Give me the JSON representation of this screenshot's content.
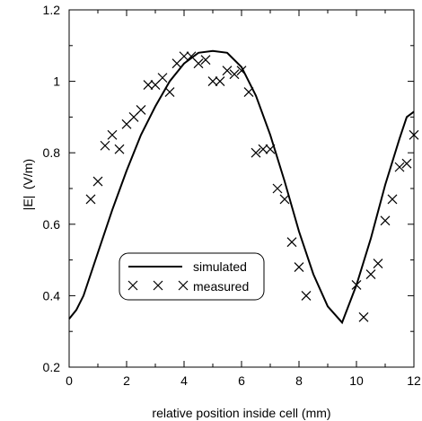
{
  "chart_data": {
    "type": "line",
    "xlabel": "relative position inside cell (mm)",
    "ylabel_left": "|E|",
    "ylabel_right": "(V/m)",
    "xlim": [
      0,
      12
    ],
    "ylim": [
      0.2,
      1.2
    ],
    "xticks": [
      "0",
      "2",
      "4",
      "6",
      "8",
      "10",
      "12"
    ],
    "yticks": [
      "0.2",
      "0.4",
      "0.6",
      "0.8",
      "1",
      "1.2"
    ],
    "grid": false,
    "legend_position": "lower-center",
    "series": [
      {
        "name": "simulated",
        "style": "solid-line",
        "x": [
          0,
          0.25,
          0.5,
          1,
          1.5,
          2,
          2.5,
          3,
          3.5,
          4,
          4.5,
          5,
          5.5,
          6,
          6.5,
          7,
          7.5,
          8,
          8.5,
          9,
          9.5,
          10,
          10.5,
          11,
          11.5,
          11.75,
          12
        ],
        "y": [
          0.335,
          0.36,
          0.4,
          0.52,
          0.64,
          0.75,
          0.85,
          0.93,
          1.0,
          1.05,
          1.08,
          1.085,
          1.08,
          1.04,
          0.96,
          0.85,
          0.72,
          0.58,
          0.46,
          0.37,
          0.325,
          0.43,
          0.56,
          0.71,
          0.84,
          0.9,
          0.915
        ]
      },
      {
        "name": "measured",
        "style": "x-marker",
        "x": [
          0.75,
          1.0,
          1.25,
          1.5,
          1.75,
          2.0,
          2.25,
          2.5,
          2.75,
          3.0,
          3.25,
          3.5,
          3.75,
          4.0,
          4.25,
          4.5,
          4.75,
          5.0,
          5.25,
          5.5,
          5.75,
          6.0,
          6.25,
          6.5,
          6.75,
          7.0,
          7.25,
          7.5,
          7.75,
          8.0,
          8.25,
          10.0,
          10.25,
          10.5,
          10.75,
          11.0,
          11.25,
          11.5,
          11.75,
          12.0
        ],
        "y": [
          0.67,
          0.72,
          0.82,
          0.85,
          0.81,
          0.88,
          0.9,
          0.92,
          0.99,
          0.99,
          1.01,
          0.97,
          1.05,
          1.07,
          1.07,
          1.05,
          1.06,
          1.0,
          1.0,
          1.03,
          1.02,
          1.03,
          0.97,
          0.8,
          0.81,
          0.81,
          0.7,
          0.67,
          0.55,
          0.48,
          0.4,
          0.43,
          0.34,
          0.46,
          0.49,
          0.61,
          0.67,
          0.76,
          0.77,
          0.85
        ]
      }
    ]
  }
}
